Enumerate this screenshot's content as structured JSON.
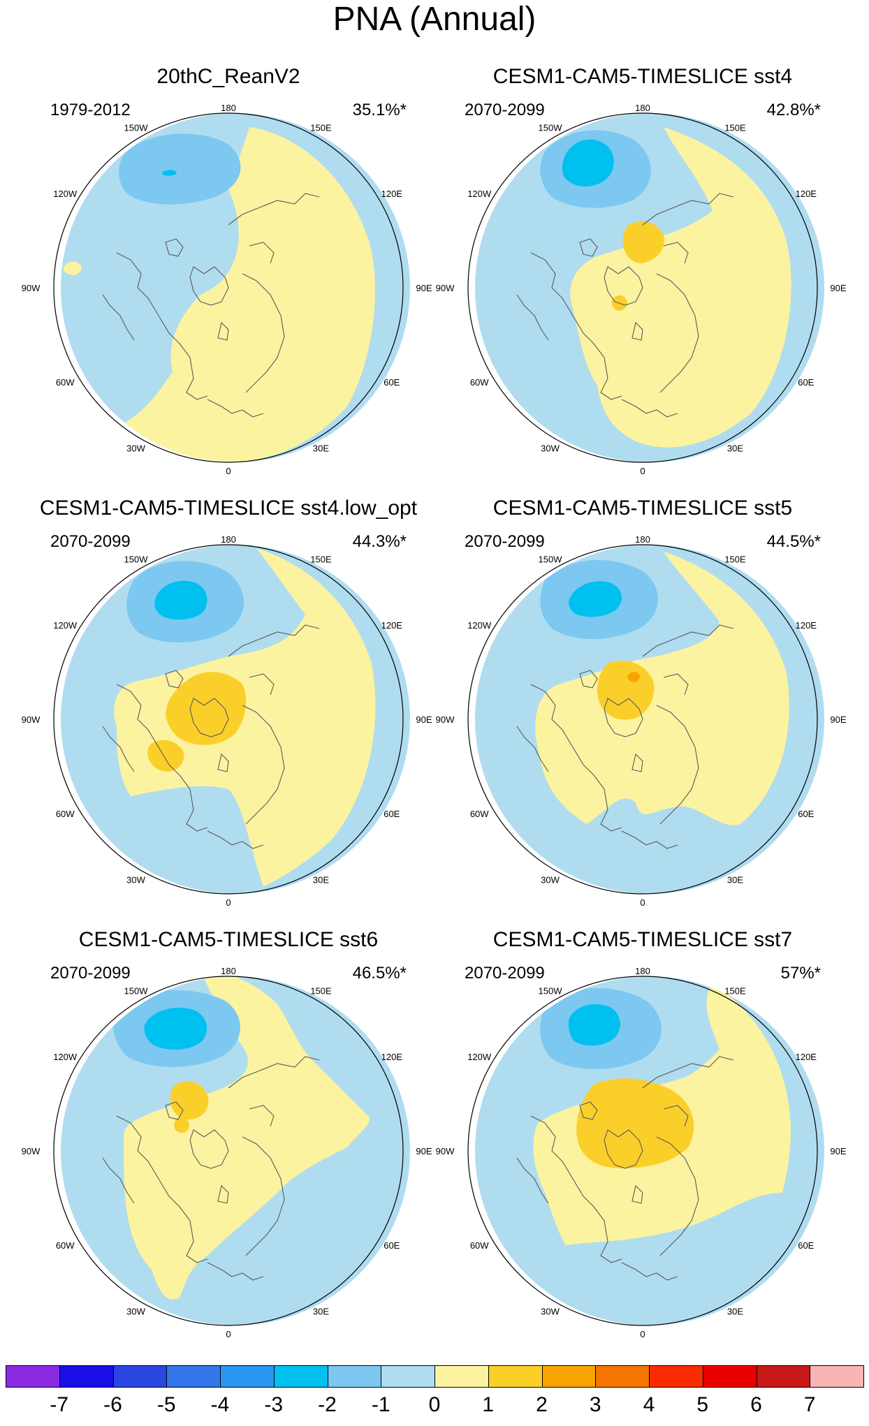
{
  "title": "PNA (Annual)",
  "longitude_labels": [
    "180",
    "150E",
    "120E",
    "90E",
    "60E",
    "30E",
    "0",
    "30W",
    "60W",
    "90W",
    "120W",
    "150W"
  ],
  "palette": {
    "-7": "#8a2be2",
    "-6": "#1a0fe6",
    "-5": "#2b45e0",
    "-4": "#3476ea",
    "-3": "#2996f0",
    "-2": "#00c0ef",
    "-1": "#7cc8f0",
    "0": "#b0dcf0",
    "1": "#fbf3a0",
    "2": "#fbcf2a",
    "3": "#f8a400",
    "4": "#f57600",
    "5": "#f82c00",
    "6": "#e80000",
    "7": "#c81818",
    "8": "#f9b4b4"
  },
  "coastline_color": "#5a5a5a",
  "panels": [
    {
      "name": "20thC_ReanV2",
      "period": "1979-2012",
      "percent": "35.1%*"
    },
    {
      "name": "CESM1-CAM5-TIMESLICE sst4",
      "period": "2070-2099",
      "percent": "42.8%*"
    },
    {
      "name": "CESM1-CAM5-TIMESLICE sst4.low_opt",
      "period": "2070-2099",
      "percent": "44.3%*"
    },
    {
      "name": "CESM1-CAM5-TIMESLICE sst5",
      "period": "2070-2099",
      "percent": "44.5%*"
    },
    {
      "name": "CESM1-CAM5-TIMESLICE sst6",
      "period": "2070-2099",
      "percent": "46.5%*"
    },
    {
      "name": "CESM1-CAM5-TIMESLICE sst7",
      "period": "2070-2099",
      "percent": "57%*"
    }
  ],
  "colorbar": {
    "colors": [
      "#8a2be2",
      "#1a0fe6",
      "#2b45e0",
      "#3476ea",
      "#2996f0",
      "#00c0ef",
      "#7cc8f0",
      "#b0dcf0",
      "#fbf3a0",
      "#fbcf2a",
      "#f8a400",
      "#f57600",
      "#f82c00",
      "#e80000",
      "#c81818",
      "#f9b4b4"
    ],
    "labels": [
      "-7",
      "-6",
      "-5",
      "-4",
      "-3",
      "-2",
      "-1",
      "0",
      "1",
      "2",
      "3",
      "4",
      "5",
      "6",
      "7"
    ]
  }
}
